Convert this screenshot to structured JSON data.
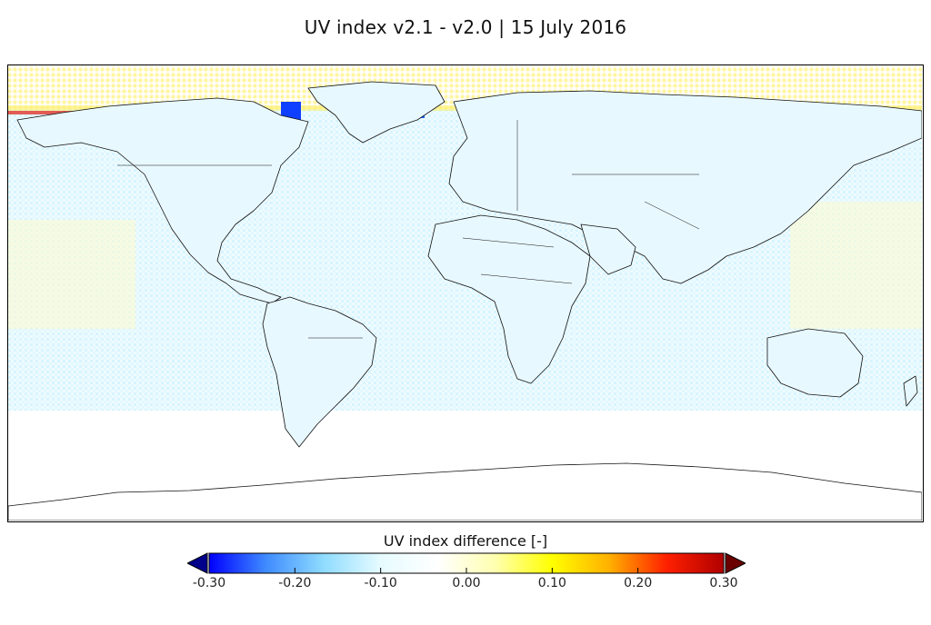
{
  "title": "UV index v2.1 - v2.0  |  15 July 2016",
  "colorbar": {
    "label": "UV index difference  [-]",
    "min": -0.3,
    "max": 0.3,
    "extend": "both",
    "colors": [
      "#00008b",
      "#0000ff",
      "#3f8cff",
      "#8fdcff",
      "#e6fbff",
      "#ffffff",
      "#ffffb0",
      "#ffff00",
      "#ffb000",
      "#ff2000",
      "#b00000",
      "#6a0000"
    ],
    "ticks": [
      {
        "value": -0.3,
        "label": "-0.30"
      },
      {
        "value": -0.2,
        "label": "-0.20"
      },
      {
        "value": -0.1,
        "label": "-0.10"
      },
      {
        "value": 0.0,
        "label": "0.00"
      },
      {
        "value": 0.1,
        "label": "0.10"
      },
      {
        "value": 0.2,
        "label": "0.20"
      },
      {
        "value": 0.3,
        "label": "0.30"
      }
    ]
  },
  "map": {
    "projection": "plate carree, global",
    "coastline_color": "#000000",
    "ocean_tint": "#eaf9ff",
    "land_tint": "#e3f7ff",
    "high_latitude_bands": "yellow/orange positive differences near 70-90N",
    "features": [
      "continents",
      "country borders",
      "Antarctica"
    ]
  }
}
